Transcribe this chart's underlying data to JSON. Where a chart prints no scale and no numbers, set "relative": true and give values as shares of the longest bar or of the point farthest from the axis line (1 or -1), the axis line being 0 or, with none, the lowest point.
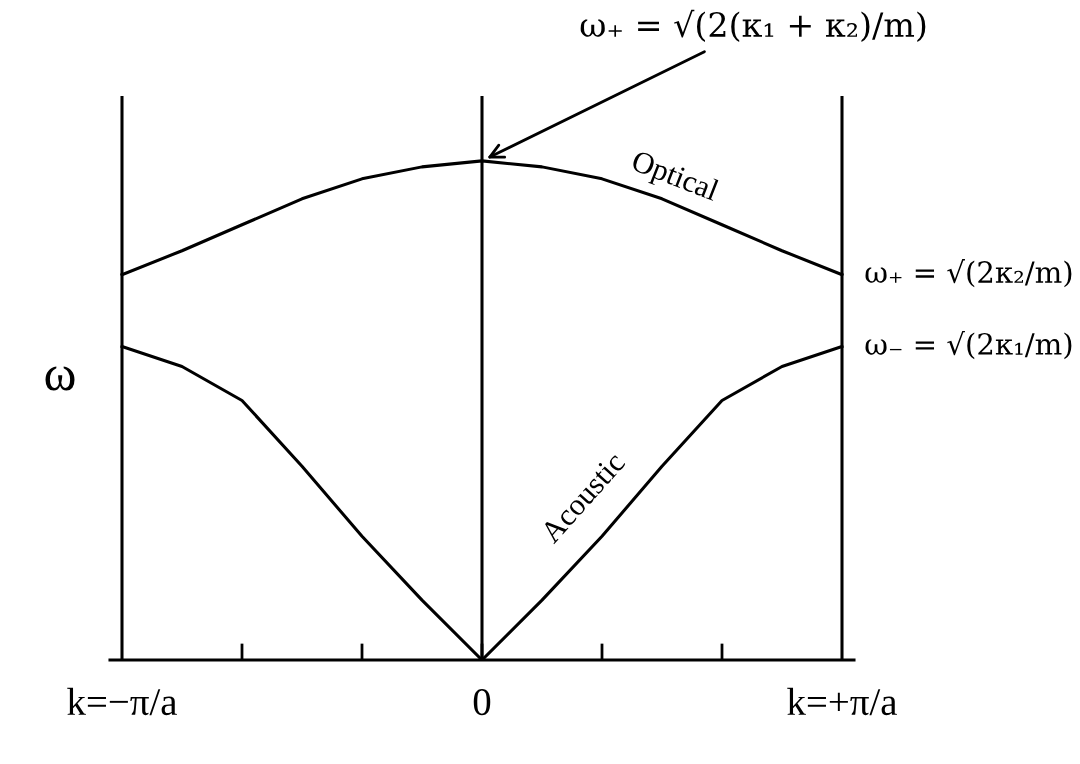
{
  "chart_data": {
    "type": "line",
    "relative": true,
    "ylabel": "ω",
    "categories": [
      "k=−π/a",
      null,
      null,
      null,
      null,
      null,
      "0",
      null,
      null,
      null,
      null,
      null,
      "k=+π/a"
    ],
    "series": [
      {
        "name": "Optical",
        "color": "#000000",
        "values": [
          0.772,
          0.82,
          0.872,
          0.924,
          0.964,
          0.988,
          1,
          0.988,
          0.964,
          0.924,
          0.872,
          0.82,
          0.772
        ]
      },
      {
        "name": "Acoustic",
        "color": "#000000",
        "values": [
          0.628,
          0.588,
          0.52,
          0.388,
          0.248,
          0.12,
          0,
          0.12,
          0.248,
          0.388,
          0.52,
          0.588,
          0.628
        ]
      }
    ],
    "ref_lines": [
      {
        "axis": "x",
        "value": "k=−π/a",
        "color": "#000000"
      },
      {
        "axis": "x",
        "value": "0",
        "color": "#000000"
      },
      {
        "axis": "x",
        "value": "k=+π/a",
        "color": "#000000"
      }
    ],
    "annotations": [
      {
        "text": "ω₊ = √(2(κ₁ + κ₂)/m)",
        "x": "0",
        "y": 1
      },
      {
        "text": "ω₊ = √(2κ₂/m)",
        "x": "k=+π/a",
        "y": 0.772
      },
      {
        "text": "ω₋ = √(2κ₁/m)",
        "x": "k=+π/a",
        "y": 0.628
      }
    ],
    "marker": "none",
    "line_style": "solid",
    "grid": false,
    "legend": false
  }
}
